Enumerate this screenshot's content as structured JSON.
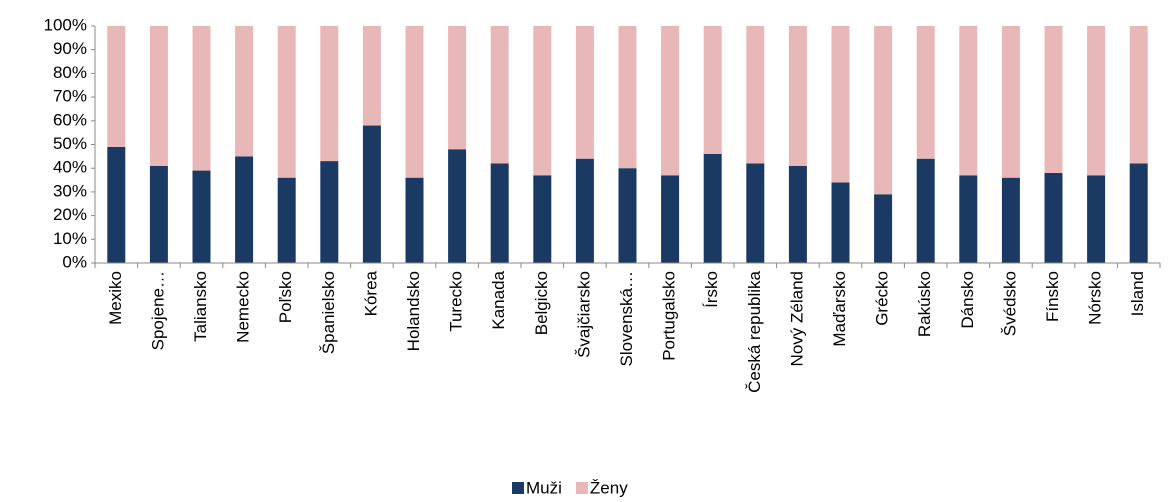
{
  "chart_data": {
    "type": "bar",
    "stacked": true,
    "categories": [
      "Mexiko",
      "Spojene…",
      "Taliansko",
      "Nemecko",
      "Poľsko",
      "Španielsko",
      "Kórea",
      "Holandsko",
      "Turecko",
      "Kanada",
      "Belgicko",
      "Švajčiarsko",
      "Slovenská…",
      "Portugalsko",
      "Írsko",
      "Česká republika",
      "Nový Zéland",
      "Maďarsko",
      "Grécko",
      "Rakúsko",
      "Dánsko",
      "Švédsko",
      "Fínsko",
      "Nórsko",
      "Island"
    ],
    "series": [
      {
        "name": "Muži",
        "color": "#1b3a63",
        "values": [
          49,
          41,
          39,
          45,
          36,
          43,
          58,
          36,
          48,
          42,
          37,
          44,
          40,
          37,
          46,
          42,
          41,
          34,
          29,
          44,
          37,
          36,
          38,
          37,
          42
        ]
      },
      {
        "name": "Ženy",
        "color": "#e8b7b8",
        "values": [
          51,
          59,
          61,
          55,
          64,
          57,
          42,
          64,
          52,
          58,
          63,
          56,
          60,
          63,
          54,
          58,
          59,
          66,
          71,
          56,
          63,
          64,
          62,
          63,
          58
        ]
      }
    ],
    "ylim": [
      0,
      100
    ],
    "yticks": [
      {
        "value": 0,
        "label": "0%"
      },
      {
        "value": 10,
        "label": "10%"
      },
      {
        "value": 20,
        "label": "20%"
      },
      {
        "value": 30,
        "label": "30%"
      },
      {
        "value": 40,
        "label": "40%"
      },
      {
        "value": 50,
        "label": "50%"
      },
      {
        "value": 60,
        "label": "60%"
      },
      {
        "value": 70,
        "label": "70%"
      },
      {
        "value": 80,
        "label": "80%"
      },
      {
        "value": 90,
        "label": "90%"
      },
      {
        "value": 100,
        "label": "100%"
      }
    ],
    "grid": false,
    "legend": "bottom"
  }
}
